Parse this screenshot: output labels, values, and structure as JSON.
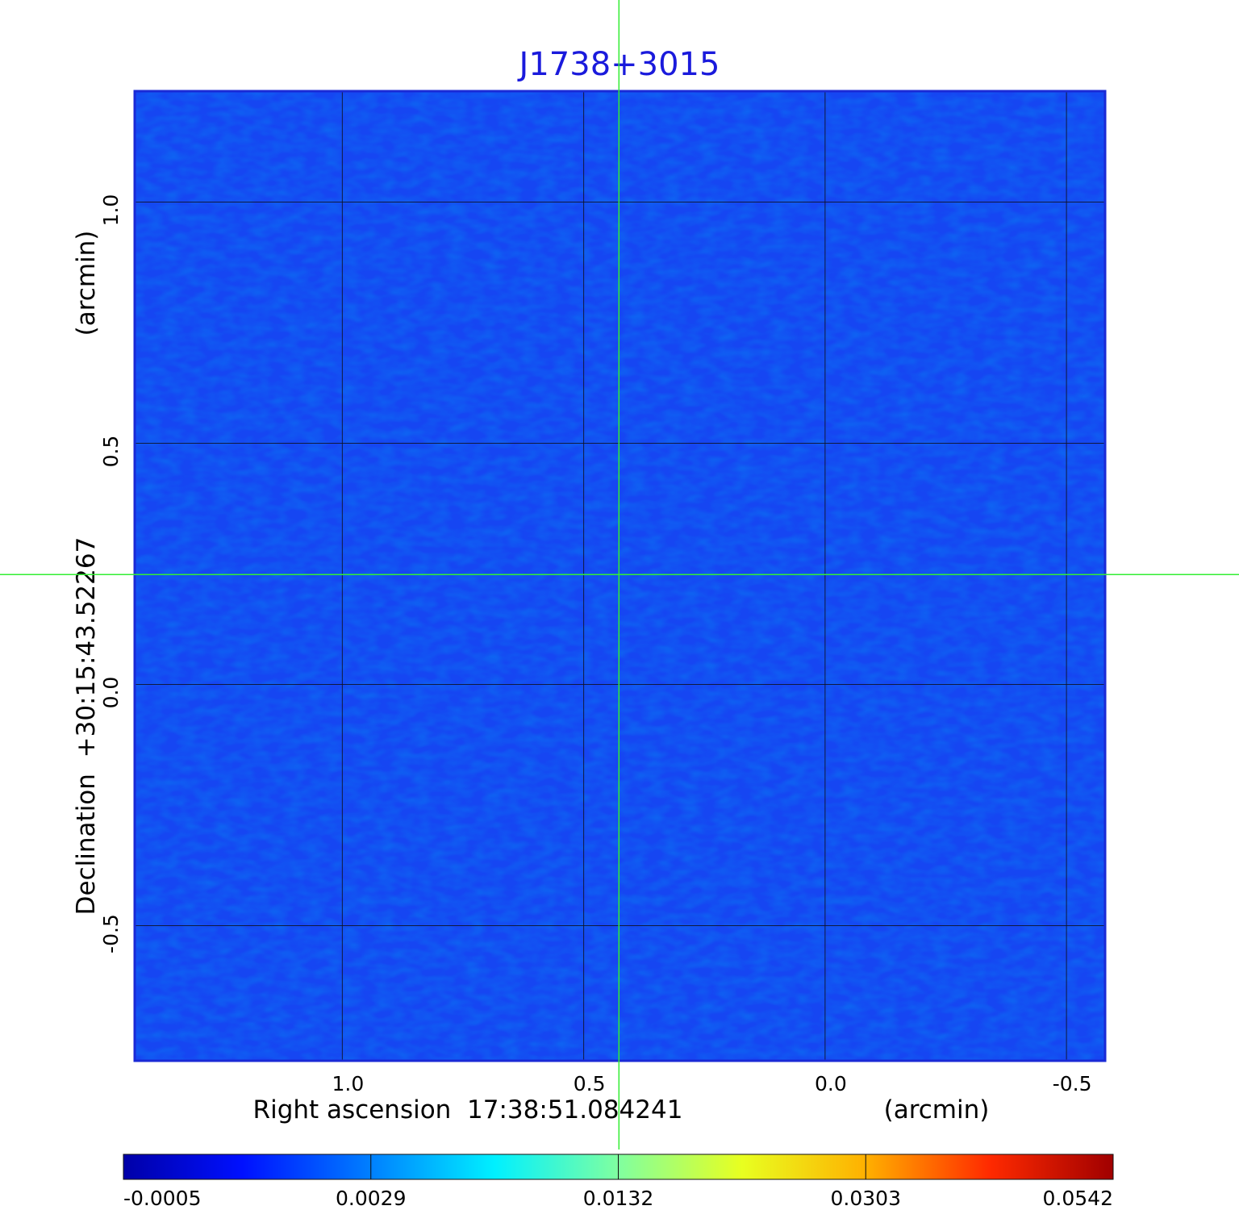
{
  "chart_data": {
    "type": "heatmap",
    "title": "J1738+3015",
    "xlabel": "Right ascension  17:38:51.084241",
    "xunit": "(arcmin)",
    "ylabel": "Declination  +30:15:43.52267",
    "yunit": "(arcmin)",
    "x_ticks": [
      1.0,
      0.5,
      0.0,
      -0.5
    ],
    "x_tick_labels": [
      "1.0",
      "0.5",
      "0.0",
      "-0.5"
    ],
    "y_ticks": [
      1.0,
      0.5,
      0.0,
      -0.5
    ],
    "y_tick_labels": [
      "1.0",
      "0.5",
      "0.0",
      "-0.5"
    ],
    "xlim": [
      1.43,
      -0.58
    ],
    "ylim": [
      -0.78,
      1.23
    ],
    "grid": true,
    "crosshair": {
      "x": 0.427,
      "y": 0.228
    },
    "source_peak": {
      "x": 0.427,
      "y": 0.228,
      "value": 0.0542
    },
    "colorbar": {
      "colormap": "jet",
      "tick_labels": [
        "-0.0005",
        "0.0029",
        "0.0132",
        "0.0303",
        "0.0542"
      ],
      "tick_values": [
        -0.0005,
        0.0029,
        0.0132,
        0.0303,
        0.0542
      ],
      "range": [
        -0.0005,
        0.0542
      ]
    },
    "colors": {
      "title": "#1a1adc",
      "crosshair": "#33ee33",
      "frame": "#1a2ad6",
      "grid": "#101020"
    }
  }
}
